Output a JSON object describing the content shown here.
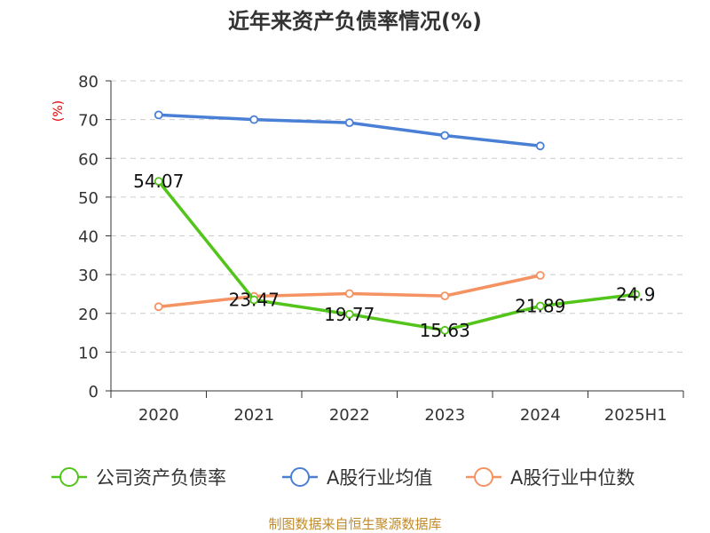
{
  "chart_data": {
    "type": "line",
    "title": "近年来资产负债率情况(%)",
    "ylabel": "(%)",
    "xlabel": "",
    "categories": [
      "2020",
      "2021",
      "2022",
      "2023",
      "2024",
      "2025H1"
    ],
    "ylim": [
      0,
      80
    ],
    "yticks": [
      0,
      10,
      20,
      30,
      40,
      50,
      60,
      70,
      80
    ],
    "grid": true,
    "legend_position": "bottom",
    "series": [
      {
        "name": "公司资产负债率",
        "color": "#52c41a",
        "values": [
          54.07,
          23.47,
          19.77,
          15.63,
          21.89,
          24.9
        ],
        "labels": [
          "54.07",
          "23.47",
          "19.77",
          "15.63",
          "21.89",
          "24.9"
        ]
      },
      {
        "name": "A股行业均值",
        "color": "#4a7fd6",
        "values": [
          71.2,
          70.0,
          69.2,
          65.9,
          63.2,
          null
        ]
      },
      {
        "name": "A股行业中位数",
        "color": "#f59262",
        "values": [
          21.7,
          24.4,
          25.1,
          24.5,
          29.8,
          null
        ]
      }
    ]
  },
  "footer": {
    "source": "制图数据来自恒生聚源数据库"
  }
}
